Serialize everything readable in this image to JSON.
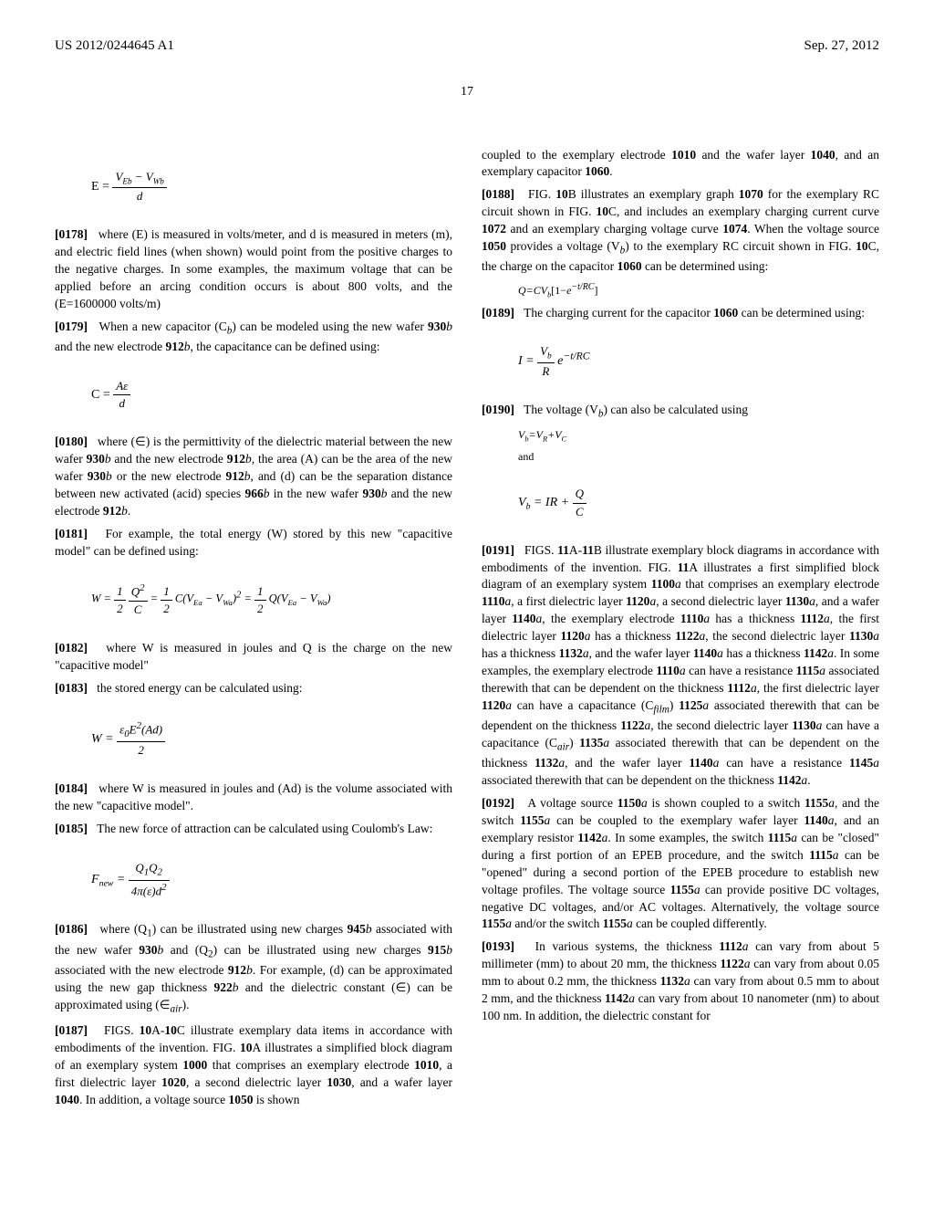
{
  "header": {
    "pub_number": "US 2012/0244645 A1",
    "date": "Sep. 27, 2012",
    "page_number": "17"
  },
  "col1": {
    "eq_E": "E = (V_Eb − V_Wb) / d",
    "p0178": "[0178]   where (E) is measured in volts/meter, and d is measured in meters (m), and electric field lines (when shown) would point from the positive charges to the negative charges. In some examples, the maximum voltage that can be applied before an arcing condition occurs is about 800 volts, and the (E=1600000 volts/m)",
    "p0179": "[0179]   When a new capacitor (C_b) can be modeled using the new wafer 930b and the new electrode 912b, the capacitance can be defined using:",
    "eq_C": "C = Aε / d",
    "p0180": "[0180]   where (∈) is the permittivity of the dielectric material between the new wafer 930b and the new electrode 912b, the area (A) can be the area of the new wafer 930b or the new electrode 912b, and (d) can be the separation distance between new activated (acid) species 966b in the new wafer 930b and the new electrode 912b.",
    "p0181": "[0181]   For example, the total energy (W) stored by this new \"capacitive model\" can be defined using:",
    "eq_W": "W = ½ Q²/C = ½ C(V_Ea − V_Wa)² = ½ Q(V_Ea − V_Wa)",
    "p0182": "[0182]   where W is measured in joules and Q is the charge on the new \"capacitive model\"",
    "p0183": "[0183]   the stored energy can be calculated using:",
    "eq_W2": "W = ε₀E²(Ad) / 2",
    "p0184": "[0184]   where W is measured in joules and (Ad) is the volume associated with the new \"capacitive model\".",
    "p0185": "[0185]   The new force of attraction can be calculated using Coulomb's Law:",
    "eq_F": "F_new = Q₁Q₂ / 4π(ε)d²",
    "p0186": "[0186]   where (Q₁) can be illustrated using new charges 945b associated with the new wafer 930b and (Q₂) can be illustrated using new charges 915b associated with the new electrode 912b. For example, (d) can be approximated using the new gap thickness 922b and the dielectric constant (∈) can be approximated using (∈_air).",
    "p0187": "[0187]   FIGS. 10A-10C illustrate exemplary data items in accordance with embodiments of the invention. FIG. 10A illustrates a simplified block diagram of an exemplary system 1000 that comprises an exemplary electrode 1010, a first dielectric layer 1020, a second dielectric layer 1030, and a wafer layer 1040. In addition, a voltage source 1050 is shown"
  },
  "col2": {
    "p0187c": "coupled to the exemplary electrode 1010 and the wafer layer 1040, and an exemplary capacitor 1060.",
    "p0188": "[0188]   FIG. 10B illustrates an exemplary graph 1070 for the exemplary RC circuit shown in FIG. 10C, and includes an exemplary charging current curve 1072 and an exemplary charging voltage curve 1074. When the voltage source 1050 provides a voltage (V_b) to the exemplary RC circuit shown in FIG. 10C, the charge on the capacitor 1060 can be determined using:",
    "eq_Q": "Q=CV_b[1−e^(−t/RC)]",
    "p0189": "[0189]   The charging current for the capacitor 1060 can be determined using:",
    "eq_I": "I = (V_b / R) e^(−t/RC)",
    "p0190": "[0190]   The voltage (V_b) can also be calculated using",
    "eq_Vb1": "V_b=V_R+V_C",
    "and": "and",
    "eq_Vb2": "V_b = IR + Q/C",
    "p0191": "[0191]   FIGS. 11A-11B illustrate exemplary block diagrams in accordance with embodiments of the invention. FIG. 11A illustrates a first simplified block diagram of an exemplary system 1100a that comprises an exemplary electrode 1110a, a first dielectric layer 1120a, a second dielectric layer 1130a, and a wafer layer 1140a, the exemplary electrode 1110a has a thickness 1112a, the first dielectric layer 1120a has a thickness 1122a, the second dielectric layer 1130a has a thickness 1132a, and the wafer layer 1140a has a thickness 1142a. In some examples, the exemplary electrode 1110a can have a resistance 1115a associated therewith that can be dependent on the thickness 1112a, the first dielectric layer 1120a can have a capacitance (C_film) 1125a associated therewith that can be dependent on the thickness 1122a, the second dielectric layer 1130a can have a capacitance (C_air) 1135a associated therewith that can be dependent on the thickness 1132a, and the wafer layer 1140a can have a resistance 1145a associated therewith that can be dependent on the thickness 1142a.",
    "p0192": "[0192]   A voltage source 1150a is shown coupled to a switch 1155a, and the switch 1155a can be coupled to the exemplary wafer layer 1140a, and an exemplary resistor 1142a. In some examples, the switch 1115a can be \"closed\" during a first portion of an EPEB procedure, and the switch 1115a can be \"opened\" during a second portion of the EPEB procedure to establish new voltage profiles. The voltage source 1155a can provide positive DC voltages, negative DC voltages, and/or AC voltages. Alternatively, the voltage source 1155a and/or the switch 1155a can be coupled differently.",
    "p0193": "[0193]   In various systems, the thickness 1112a can vary from about 5 millimeter (mm) to about 20 mm, the thickness 1122a can vary from about 0.05 mm to about 0.2 mm, the thickness 1132a can vary from about 0.5 mm to about 2 mm, and the thickness 1142a can vary from about 10 nanometer (nm) to about 100 nm. In addition, the dielectric constant for"
  }
}
